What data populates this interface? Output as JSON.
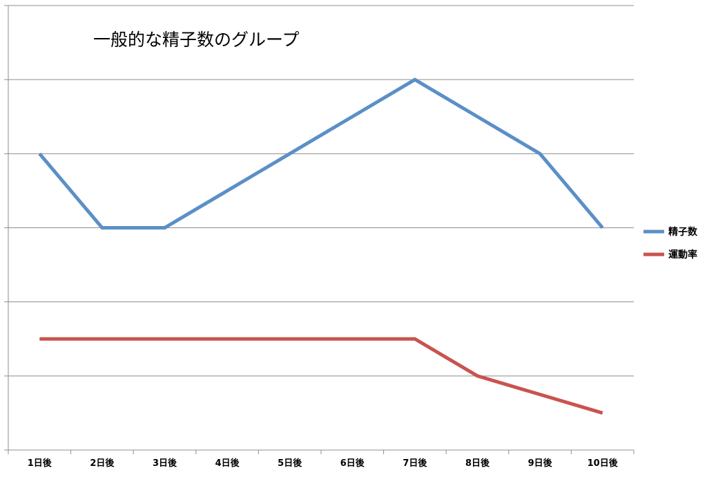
{
  "chart_data": {
    "type": "line",
    "title": "一般的な精子数のグループ",
    "categories": [
      "1日後",
      "2日後",
      "3日後",
      "4日後",
      "5日後",
      "6日後",
      "7日後",
      "8日後",
      "9日後",
      "10日後"
    ],
    "series": [
      {
        "name": "精子数",
        "color": "#5b8fc7",
        "values": [
          4,
          3,
          3,
          3.5,
          4,
          4.5,
          5,
          4.5,
          4,
          3
        ]
      },
      {
        "name": "運動率",
        "color": "#c9534f",
        "values": [
          1.5,
          1.5,
          1.5,
          1.5,
          1.5,
          1.5,
          1.5,
          1,
          0.75,
          0.5
        ]
      }
    ],
    "xlabel": "",
    "ylabel": "",
    "ylim": [
      0,
      6
    ],
    "grid": true,
    "legend_position": "right"
  }
}
